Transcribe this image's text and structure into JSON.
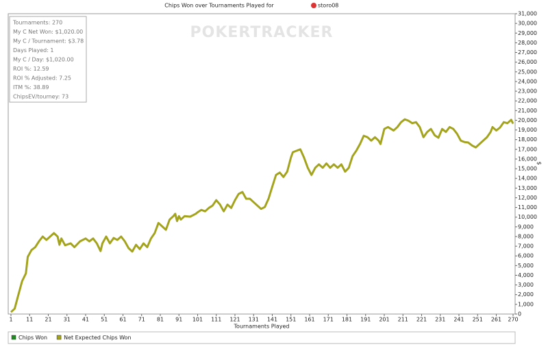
{
  "chart_data": {
    "type": "line",
    "title": "Chips Won over Tournaments Played for",
    "player": "storo08",
    "watermark": "POKERTRACKER",
    "x_label": "Tournaments Played",
    "y_label": "$",
    "stats": [
      "Tournaments: 270",
      "My C Net Won: $1,020.00",
      "My C / Tournament: $3.78",
      "Days Played: 1",
      "My C / Day: $1,020.00",
      "ROI %: 12.59",
      "ROI % Adjusted: 7.25",
      "ITM %: 38.89",
      "ChipsEV/tourney: 73"
    ],
    "legend": [
      {
        "name": "Chips Won",
        "color": "#1e8c1e"
      },
      {
        "name": "Net Expected Chips Won",
        "color": "#a3a31c"
      }
    ],
    "color": "#a3a31c",
    "x": [
      1,
      3,
      5,
      7,
      9,
      10,
      12,
      14,
      16,
      18,
      20,
      22,
      24,
      26,
      27,
      28,
      30,
      33,
      35,
      38,
      41,
      43,
      45,
      47,
      49,
      50,
      52,
      54,
      56,
      58,
      60,
      62,
      64,
      66,
      68,
      70,
      72,
      74,
      76,
      78,
      80,
      82,
      84,
      86,
      88,
      89,
      90,
      91,
      92,
      94,
      97,
      100,
      101,
      103,
      105,
      107,
      109,
      111,
      113,
      115,
      117,
      119,
      121,
      123,
      125,
      127,
      129,
      131,
      135,
      137,
      139,
      141,
      143,
      145,
      147,
      149,
      151,
      152,
      154,
      156,
      158,
      160,
      162,
      164,
      166,
      168,
      170,
      172,
      174,
      176,
      178,
      180,
      182,
      184,
      186,
      188,
      190,
      192,
      194,
      196,
      198,
      199,
      201,
      203,
      206,
      208,
      210,
      212,
      214,
      216,
      218,
      220,
      222,
      224,
      226,
      228,
      230,
      232,
      234,
      236,
      238,
      240,
      242,
      244,
      246,
      248,
      250,
      252,
      254,
      256,
      258,
      259,
      261,
      263,
      265,
      267,
      269,
      270
    ],
    "values": [
      200,
      550,
      2000,
      3400,
      4200,
      5900,
      6600,
      6900,
      7500,
      8000,
      7650,
      8000,
      8350,
      8000,
      7150,
      7800,
      7100,
      7300,
      6900,
      7500,
      7800,
      7500,
      7800,
      7300,
      6500,
      7300,
      8000,
      7300,
      7850,
      7650,
      8000,
      7500,
      6800,
      6450,
      7150,
      6700,
      7300,
      6900,
      7800,
      8350,
      9400,
      9050,
      8700,
      9750,
      10100,
      10350,
      9600,
      10100,
      9750,
      10100,
      10050,
      10350,
      10500,
      10750,
      10600,
      10950,
      11200,
      11750,
      11300,
      10600,
      11300,
      10950,
      11750,
      12400,
      12600,
      11900,
      11900,
      11550,
      10850,
      11050,
      11900,
      13150,
      14350,
      14600,
      14150,
      14700,
      16150,
      16700,
      16850,
      17000,
      16150,
      15100,
      14350,
      15100,
      15450,
      15100,
      15550,
      15100,
      15450,
      15100,
      15450,
      14700,
      15100,
      16300,
      16850,
      17550,
      18400,
      18250,
      17900,
      18250,
      17900,
      17550,
      19100,
      19300,
      18950,
      19300,
      19800,
      20100,
      19950,
      19700,
      19800,
      19300,
      18250,
      18800,
      19100,
      18450,
      18200,
      19100,
      18800,
      19300,
      19100,
      18600,
      17900,
      17750,
      17700,
      17400,
      17200,
      17550,
      17900,
      18250,
      18800,
      19300,
      18950,
      19250,
      19800,
      19700,
      20050,
      19650
    ],
    "xlim": [
      1,
      270
    ],
    "xticks": [
      1,
      11,
      21,
      31,
      41,
      51,
      61,
      71,
      81,
      91,
      101,
      111,
      121,
      131,
      141,
      151,
      161,
      171,
      181,
      191,
      201,
      211,
      221,
      231,
      241,
      251,
      261,
      270
    ],
    "ylim": [
      0,
      31000
    ],
    "yticks": [
      0,
      {
        "value": 1000,
        "label": "1,000"
      },
      {
        "value": 2000,
        "label": "2,000"
      },
      {
        "value": 3000,
        "label": "3,000"
      },
      {
        "value": 4000,
        "label": "4,000"
      },
      {
        "value": 5000,
        "label": "5,000"
      },
      {
        "value": 6000,
        "label": "6,000"
      },
      {
        "value": 7000,
        "label": "7,000"
      },
      {
        "value": 8000,
        "label": "8,000"
      },
      {
        "value": 9000,
        "label": "9,000"
      },
      {
        "value": 10000,
        "label": "10,000"
      },
      {
        "value": 11000,
        "label": "11,000"
      },
      {
        "value": 12000,
        "label": "12,000"
      },
      {
        "value": 13000,
        "label": "13,000"
      },
      {
        "value": 14000,
        "label": "14,000"
      },
      {
        "value": 15000,
        "label": "15,000"
      },
      {
        "value": 16000,
        "label": "16,000"
      },
      {
        "value": 17000,
        "label": "17,000"
      },
      {
        "value": 18000,
        "label": "18,000"
      },
      {
        "value": 19000,
        "label": "19,000"
      },
      {
        "value": 20000,
        "label": "20,000"
      },
      {
        "value": 21000,
        "label": "21,000"
      },
      {
        "value": 22000,
        "label": "22,000"
      },
      {
        "value": 23000,
        "label": "23,000"
      },
      {
        "value": 24000,
        "label": "24,000"
      },
      {
        "value": 25000,
        "label": "25,000"
      },
      {
        "value": 26000,
        "label": "26,000"
      },
      {
        "value": 27000,
        "label": "27,000"
      },
      {
        "value": 28000,
        "label": "28,000"
      },
      {
        "value": 29000,
        "label": "29,000"
      },
      {
        "value": 30000,
        "label": "30,000"
      },
      {
        "value": 31000,
        "label": "31,000"
      }
    ],
    "grid": false
  }
}
